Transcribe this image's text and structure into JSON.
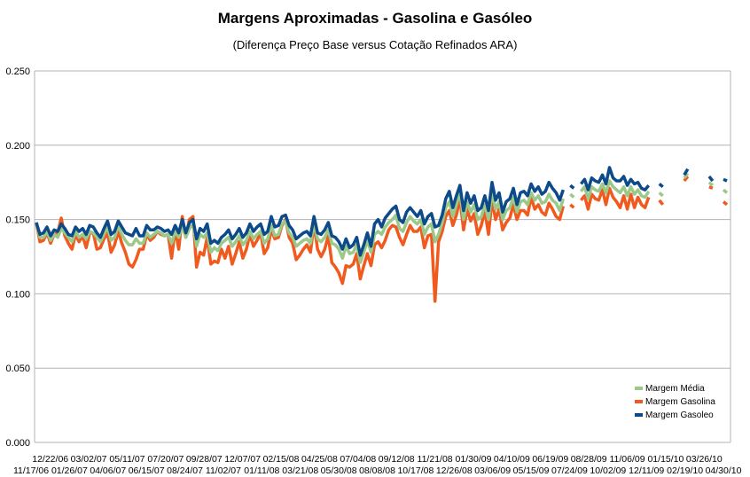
{
  "chart_data": {
    "type": "line",
    "title": "Margens Aproximadas - Gasolina e Gasóleo",
    "subtitle": "(Diferença Preço Base versus Cotação Refinados ARA)",
    "xlabel": "",
    "ylabel": "",
    "ylim": [
      0,
      0.25
    ],
    "y_ticks": [
      "0.000",
      "0.050",
      "0.100",
      "0.150",
      "0.200",
      "0.250"
    ],
    "grid": "horizontal",
    "legend_position": "bottom-right",
    "x_ticks_upper": [
      "12/22/06",
      "03/02/07",
      "05/11/07",
      "07/20/07",
      "09/28/07",
      "12/07/07",
      "02/15/08",
      "04/25/08",
      "07/04/08",
      "09/12/08",
      "11/21/08",
      "01/30/09",
      "04/10/09",
      "06/19/09",
      "08/28/09",
      "11/06/09",
      "01/15/10",
      "03/26/10"
    ],
    "x_ticks_lower": [
      "11/17/06",
      "01/26/07",
      "04/06/07",
      "06/15/07",
      "08/24/07",
      "11/02/07",
      "01/11/08",
      "03/21/08",
      "05/30/08",
      "08/08/08",
      "10/17/08",
      "12/26/08",
      "03/06/09",
      "05/15/09",
      "07/24/09",
      "10/02/09",
      "12/11/09",
      "02/19/10",
      "04/30/10"
    ],
    "series": [
      {
        "name": "Margem Média",
        "color": "#9bc98a",
        "values": [
          0.148,
          0.138,
          0.138,
          0.142,
          0.136,
          0.14,
          0.138,
          0.144,
          0.141,
          0.138,
          0.135,
          0.142,
          0.138,
          0.14,
          0.137,
          0.142,
          0.141,
          0.138,
          0.135,
          0.14,
          0.145,
          0.136,
          0.138,
          0.146,
          0.14,
          0.136,
          0.133,
          0.133,
          0.137,
          0.134,
          0.134,
          0.141,
          0.138,
          0.14,
          0.142,
          0.141,
          0.139,
          0.14,
          0.134,
          0.142,
          0.138,
          0.146,
          0.138,
          0.144,
          0.147,
          0.132,
          0.14,
          0.138,
          0.141,
          0.128,
          0.131,
          0.129,
          0.134,
          0.136,
          0.138,
          0.132,
          0.135,
          0.139,
          0.133,
          0.136,
          0.142,
          0.137,
          0.14,
          0.142,
          0.134,
          0.137,
          0.146,
          0.139,
          0.14,
          0.147,
          0.149,
          0.141,
          0.138,
          0.132,
          0.134,
          0.136,
          0.137,
          0.134,
          0.147,
          0.137,
          0.135,
          0.138,
          0.143,
          0.134,
          0.133,
          0.13,
          0.124,
          0.132,
          0.127,
          0.128,
          0.133,
          0.121,
          0.128,
          0.136,
          0.128,
          0.14,
          0.142,
          0.14,
          0.145,
          0.148,
          0.15,
          0.153,
          0.144,
          0.142,
          0.148,
          0.152,
          0.149,
          0.147,
          0.15,
          0.14,
          0.145,
          0.147,
          0.135,
          0.14,
          0.148,
          0.158,
          0.162,
          0.152,
          0.16,
          0.168,
          0.15,
          0.162,
          0.155,
          0.16,
          0.15,
          0.152,
          0.16,
          0.15,
          0.168,
          0.157,
          0.162,
          0.15,
          0.156,
          0.158,
          0.165,
          0.155,
          0.162,
          0.163,
          0.16,
          0.168,
          0.163,
          0.166,
          0.161,
          0.162,
          0.167,
          0.163,
          0.161,
          0.156,
          0.164,
          null,
          0.167,
          0.165,
          null,
          0.169,
          0.172,
          0.164,
          0.172,
          0.17,
          0.169,
          0.174,
          0.168,
          0.176,
          0.172,
          0.17,
          0.168,
          0.172,
          0.166,
          0.172,
          0.167,
          0.17,
          0.166,
          0.165,
          0.169,
          null,
          null,
          0.168,
          0.166,
          null,
          null,
          null,
          null,
          null,
          0.178,
          0.181,
          null,
          null,
          null,
          null,
          null,
          0.175,
          0.173,
          null,
          null,
          0.17,
          0.168
        ]
      },
      {
        "name": "Margem Gasolina",
        "color": "#f05a1e",
        "values": [
          0.148,
          0.135,
          0.136,
          0.141,
          0.134,
          0.14,
          0.141,
          0.151,
          0.139,
          0.134,
          0.13,
          0.14,
          0.135,
          0.139,
          0.131,
          0.141,
          0.141,
          0.13,
          0.131,
          0.137,
          0.141,
          0.128,
          0.133,
          0.142,
          0.134,
          0.128,
          0.12,
          0.118,
          0.123,
          0.13,
          0.13,
          0.14,
          0.136,
          0.138,
          0.142,
          0.14,
          0.139,
          0.14,
          0.124,
          0.144,
          0.13,
          0.152,
          0.138,
          0.15,
          0.152,
          0.118,
          0.128,
          0.126,
          0.138,
          0.12,
          0.122,
          0.121,
          0.13,
          0.124,
          0.132,
          0.12,
          0.127,
          0.135,
          0.124,
          0.13,
          0.14,
          0.132,
          0.136,
          0.141,
          0.127,
          0.131,
          0.143,
          0.137,
          0.138,
          0.146,
          0.15,
          0.138,
          0.134,
          0.123,
          0.126,
          0.13,
          0.133,
          0.128,
          0.147,
          0.13,
          0.125,
          0.13,
          0.139,
          0.121,
          0.118,
          0.114,
          0.107,
          0.119,
          0.118,
          0.12,
          0.127,
          0.11,
          0.119,
          0.127,
          0.119,
          0.133,
          0.135,
          0.131,
          0.136,
          0.143,
          0.146,
          0.145,
          0.138,
          0.133,
          0.14,
          0.146,
          0.142,
          0.142,
          0.145,
          0.131,
          0.139,
          0.14,
          0.095,
          0.135,
          0.142,
          0.152,
          0.156,
          0.146,
          0.153,
          0.164,
          0.143,
          0.157,
          0.149,
          0.154,
          0.14,
          0.146,
          0.156,
          0.14,
          0.163,
          0.15,
          0.157,
          0.143,
          0.148,
          0.151,
          0.16,
          0.15,
          0.156,
          0.156,
          0.153,
          0.165,
          0.157,
          0.16,
          0.155,
          0.153,
          0.161,
          0.157,
          0.152,
          0.15,
          0.159,
          null,
          0.16,
          0.158,
          null,
          0.163,
          0.166,
          0.157,
          0.167,
          0.164,
          0.163,
          0.17,
          0.16,
          0.171,
          0.165,
          0.162,
          0.158,
          0.166,
          0.157,
          0.167,
          0.158,
          0.165,
          0.16,
          0.158,
          0.165,
          null,
          null,
          0.163,
          0.16,
          null,
          null,
          null,
          null,
          null,
          0.176,
          0.179,
          null,
          null,
          null,
          null,
          null,
          0.172,
          0.171,
          null,
          null,
          0.162,
          0.16
        ]
      },
      {
        "name": "Margem Gasoleo",
        "color": "#0c4a8a",
        "values": [
          0.148,
          0.14,
          0.141,
          0.145,
          0.139,
          0.143,
          0.142,
          0.147,
          0.144,
          0.14,
          0.139,
          0.145,
          0.142,
          0.144,
          0.14,
          0.146,
          0.145,
          0.141,
          0.138,
          0.144,
          0.149,
          0.14,
          0.142,
          0.149,
          0.145,
          0.141,
          0.14,
          0.139,
          0.144,
          0.139,
          0.139,
          0.146,
          0.143,
          0.143,
          0.145,
          0.144,
          0.142,
          0.143,
          0.14,
          0.146,
          0.141,
          0.15,
          0.141,
          0.148,
          0.15,
          0.137,
          0.144,
          0.142,
          0.147,
          0.134,
          0.136,
          0.134,
          0.138,
          0.14,
          0.143,
          0.137,
          0.14,
          0.144,
          0.138,
          0.141,
          0.147,
          0.142,
          0.145,
          0.147,
          0.14,
          0.142,
          0.152,
          0.145,
          0.146,
          0.152,
          0.153,
          0.146,
          0.143,
          0.137,
          0.139,
          0.141,
          0.142,
          0.139,
          0.152,
          0.141,
          0.14,
          0.143,
          0.148,
          0.139,
          0.138,
          0.135,
          0.13,
          0.137,
          0.131,
          0.133,
          0.138,
          0.126,
          0.133,
          0.141,
          0.132,
          0.147,
          0.15,
          0.145,
          0.151,
          0.154,
          0.157,
          0.159,
          0.15,
          0.148,
          0.155,
          0.158,
          0.155,
          0.152,
          0.156,
          0.147,
          0.152,
          0.154,
          0.145,
          0.146,
          0.153,
          0.164,
          0.169,
          0.158,
          0.166,
          0.173,
          0.156,
          0.168,
          0.161,
          0.166,
          0.156,
          0.158,
          0.166,
          0.156,
          0.175,
          0.163,
          0.168,
          0.155,
          0.162,
          0.164,
          0.171,
          0.16,
          0.168,
          0.169,
          0.166,
          0.174,
          0.169,
          0.172,
          0.167,
          0.169,
          0.175,
          0.171,
          0.168,
          0.163,
          0.17,
          null,
          0.173,
          0.171,
          null,
          0.174,
          0.177,
          0.17,
          0.178,
          0.176,
          0.175,
          0.18,
          0.174,
          0.185,
          0.178,
          0.176,
          0.176,
          0.179,
          0.173,
          0.177,
          0.174,
          0.175,
          0.171,
          0.17,
          0.173,
          null,
          null,
          0.174,
          0.172,
          null,
          null,
          null,
          null,
          null,
          0.18,
          0.184,
          null,
          null,
          null,
          null,
          null,
          0.179,
          0.176,
          null,
          null,
          0.177,
          0.176
        ]
      }
    ]
  }
}
